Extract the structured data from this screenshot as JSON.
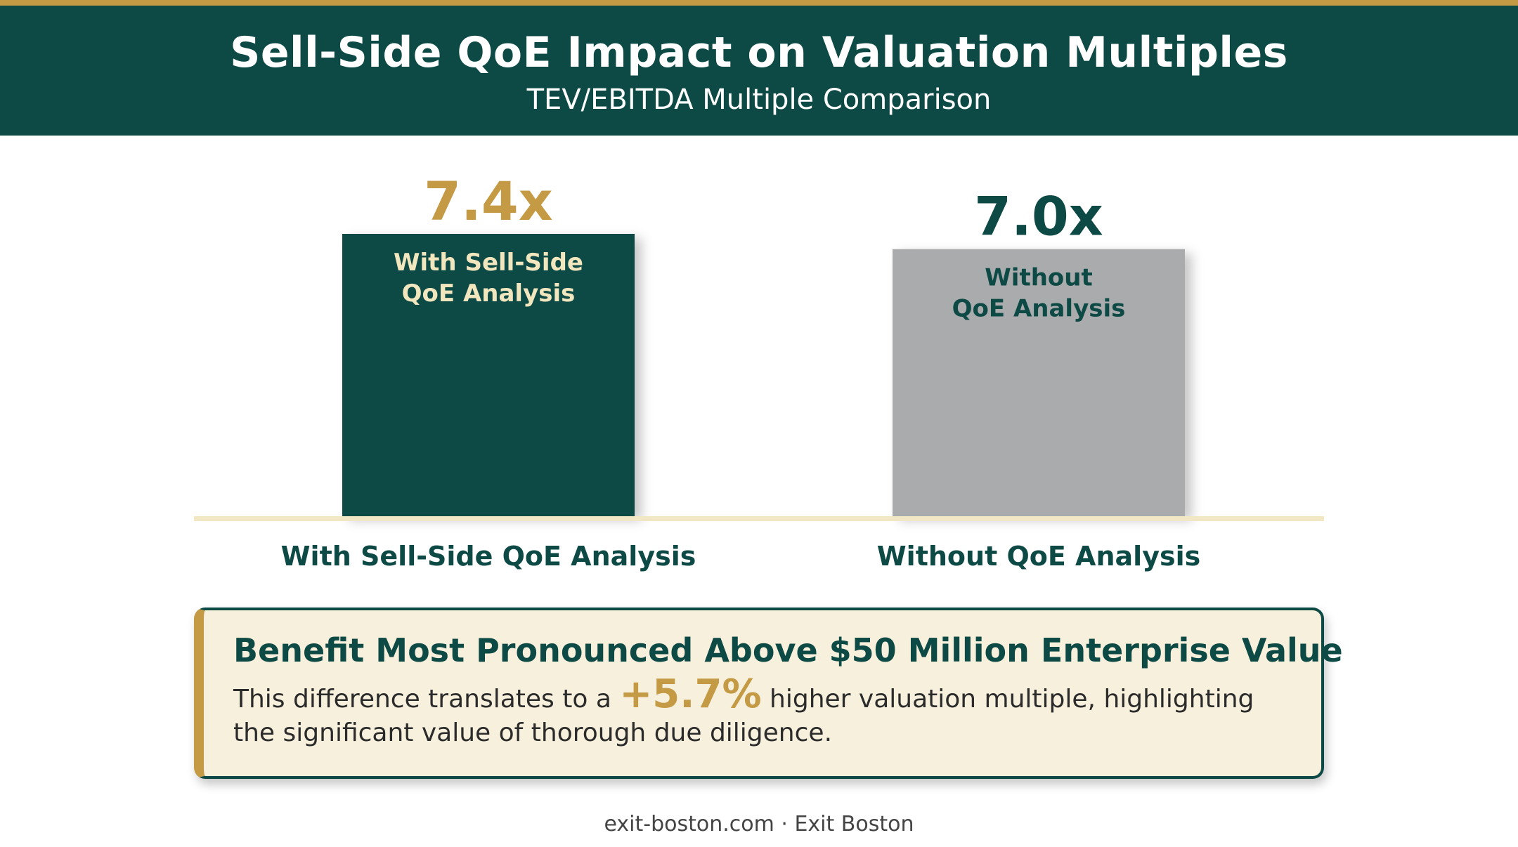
{
  "header": {
    "title": "Sell-Side QoE Impact on Valuation Multiples",
    "subtitle": "TEV/EBITDA Multiple Comparison"
  },
  "chart_data": {
    "type": "bar",
    "title": "Sell-Side QoE Impact on Valuation Multiples",
    "subtitle": "TEV/EBITDA Multiple Comparison",
    "categories": [
      "With Sell-Side QoE Analysis",
      "Without QoE Analysis"
    ],
    "values": [
      7.4,
      7.0
    ],
    "value_labels": [
      "7.4x",
      "7.0x"
    ],
    "bar_inner_labels": [
      [
        "With Sell-Side",
        "QoE Analysis"
      ],
      [
        "Without",
        "QoE Analysis"
      ]
    ],
    "bar_colors": [
      "#0e4a45",
      "#a9abad"
    ],
    "value_label_colors": [
      "#c49a45",
      "#0e4a45"
    ],
    "inner_label_colors": [
      "#f2e6bf",
      "#0e4a45"
    ],
    "ylim": [
      0,
      7.4
    ],
    "grid": false,
    "legend": "none"
  },
  "callout": {
    "heading": "Benefit Most Pronounced Above $50 Million Enterprise Value",
    "body_before": "This difference translates to a ",
    "highlight": "+5.7%",
    "body_after": " higher valuation multiple, highlighting the significant value of thorough due diligence."
  },
  "footer": {
    "text": "exit-boston.com · Exit Boston"
  },
  "colors": {
    "primary": "#0e4a45",
    "accent": "#c49a45",
    "secondary_bar": "#a9abad",
    "callout_bg": "#f7f0dc",
    "baseline": "#f2e7c4"
  }
}
